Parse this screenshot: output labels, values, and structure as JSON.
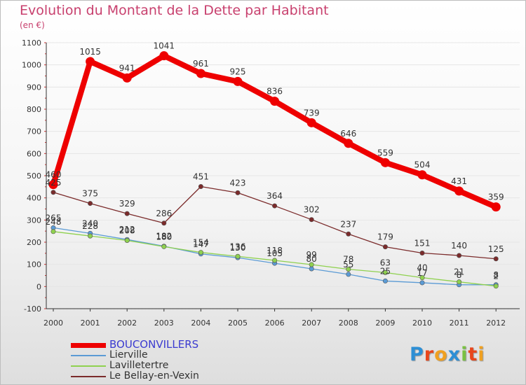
{
  "header": {
    "title": "Evolution du Montant de la Dette par Habitant",
    "subtitle": "(en €)"
  },
  "colors": {
    "title": "#c8406e",
    "axis": "#333333",
    "grid": "#e6e6e6"
  },
  "brand": {
    "name": "Proxiti"
  },
  "chart_data": {
    "type": "line",
    "title": "Evolution du Montant de la Dette par Habitant",
    "subtitle": "(en €)",
    "xlabel": "",
    "ylabel": "",
    "x": [
      "2000",
      "2001",
      "2002",
      "2003",
      "2004",
      "2005",
      "2006",
      "2007",
      "2008",
      "2009",
      "2010",
      "2011",
      "2012"
    ],
    "ylim": [
      -100,
      1100
    ],
    "yticks": [
      -100,
      0,
      100,
      200,
      300,
      400,
      500,
      600,
      700,
      800,
      900,
      1000,
      1100
    ],
    "grid": "horizontal",
    "legend": "bottom-left",
    "series": [
      {
        "name": "BOUCONVILLERS",
        "color": "#ee0000",
        "values": [
          460,
          1015,
          941,
          1041,
          961,
          925,
          836,
          739,
          646,
          559,
          504,
          431,
          359
        ],
        "labels": [
          "460",
          "1015",
          "941",
          "1041",
          "961",
          "925",
          "836",
          "739",
          "646",
          "559",
          "504",
          "431",
          "359"
        ]
      },
      {
        "name": "Lierville",
        "color": "#5b9bd5",
        "values": [
          265,
          240,
          212,
          182,
          147,
          130,
          105,
          80,
          55,
          25,
          17,
          8,
          8
        ],
        "labels": [
          "265",
          "240",
          "212",
          "182",
          "147",
          "130",
          "105",
          "80",
          "55",
          "25",
          "17",
          "8",
          "8"
        ]
      },
      {
        "name": "Lavilletertre",
        "color": "#8fd14f",
        "values": [
          248,
          228,
          208,
          180,
          154,
          136,
          118,
          99,
          78,
          63,
          40,
          21,
          2
        ],
        "labels": [
          "248",
          "228",
          "208",
          "180",
          "154",
          "136",
          "118",
          "99",
          "78",
          "63",
          "40",
          "21",
          "2"
        ]
      },
      {
        "name": "Le Bellay-en-Vexin",
        "color": "#7b2b2b",
        "values": [
          425,
          375,
          329,
          286,
          451,
          423,
          364,
          302,
          237,
          179,
          151,
          140,
          125
        ],
        "labels": [
          "425",
          "375",
          "329",
          "286",
          "451",
          "423",
          "364",
          "302",
          "237",
          "179",
          "151",
          "140",
          "125"
        ]
      }
    ]
  }
}
